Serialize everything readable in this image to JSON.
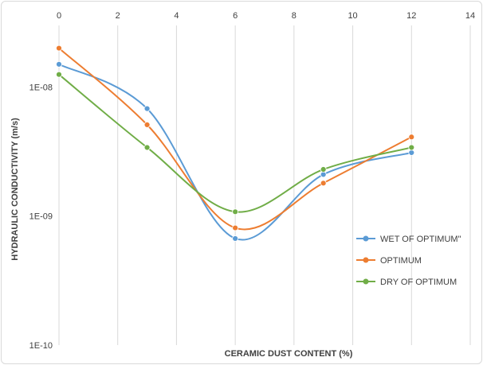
{
  "chart_data": {
    "type": "line",
    "smooth": true,
    "title": "",
    "xlabel": "CERAMIC DUST CONTENT (%)",
    "ylabel": "HYDRAULIC CONDUCTIVITY (m/s)",
    "x_axis_position": "top",
    "xlim": [
      0,
      14
    ],
    "xticks": [
      0,
      2,
      4,
      6,
      8,
      10,
      12,
      14
    ],
    "x_tick_labels": [
      "0",
      "2",
      "4",
      "6",
      "8",
      "10",
      "12",
      "14"
    ],
    "y_scale": "log",
    "ylim": [
      1e-10,
      3e-08
    ],
    "yticks": [
      1e-08,
      1e-09,
      1e-10
    ],
    "y_tick_labels": [
      "1E-08",
      "1E-09",
      "1E-10"
    ],
    "grid": {
      "vertical": true,
      "horizontal": false
    },
    "legend_position": "right",
    "series": [
      {
        "name": "WET OF OPTIMUM\"",
        "color": "#5b9bd5",
        "x": [
          0,
          3,
          6,
          9,
          12
        ],
        "y": [
          1.5e-08,
          6.8e-09,
          6.7e-10,
          2.1e-09,
          3.1e-09
        ]
      },
      {
        "name": "OPTIMUM",
        "color": "#ed7d31",
        "x": [
          0,
          3,
          6,
          9,
          12
        ],
        "y": [
          2e-08,
          5.1e-09,
          8.1e-10,
          1.8e-09,
          4.1e-09
        ]
      },
      {
        "name": "DRY OF OPTIMUM",
        "color": "#70ad47",
        "x": [
          0,
          3,
          6,
          9,
          12
        ],
        "y": [
          1.25e-08,
          3.4e-09,
          1.08e-09,
          2.3e-09,
          3.4e-09
        ]
      }
    ]
  }
}
